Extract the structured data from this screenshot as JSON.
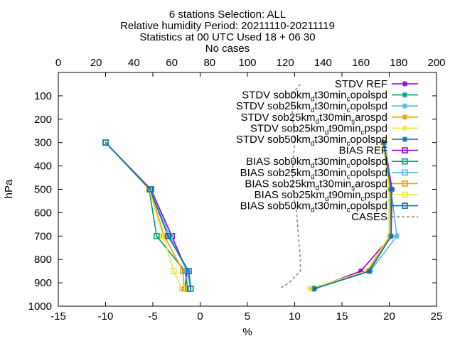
{
  "chart_data": {
    "type": "line",
    "title_lines": [
      "6 stations Selection: ALL",
      "Relative humidity  Period: 20211110-20211119",
      "Statistics at 00 UTC  Used 18 + 06 30",
      "No cases"
    ],
    "xlabel": "%",
    "ylabel": "hPa",
    "xlim": [
      -15,
      25
    ],
    "x2lim": [
      0,
      200
    ],
    "ylim": [
      1000,
      0
    ],
    "x_ticks": [
      "-15",
      "-10",
      "-5",
      "0",
      "5",
      "10",
      "15",
      "20",
      "25"
    ],
    "x2_ticks": [
      "0",
      "20",
      "40",
      "60",
      "80",
      "100",
      "120",
      "140",
      "160",
      "180",
      "200"
    ],
    "y_ticks": [
      "100",
      "200",
      "300",
      "400",
      "500",
      "600",
      "700",
      "800",
      "900",
      "1000"
    ],
    "legend_position": "top-right",
    "grid": false,
    "series": [
      {
        "name": "STDV REF",
        "color": "#9400d3",
        "marker": "star",
        "dash": false,
        "points": [
          [
            19.5,
            300
          ],
          [
            20.3,
            500
          ],
          [
            20.2,
            700
          ],
          [
            17,
            850
          ],
          [
            12,
            925
          ]
        ]
      },
      {
        "name": "STDV sob0km_d t30min_c opolspd",
        "color": "#009e73",
        "marker": "star",
        "dash": false,
        "points": [
          [
            19.4,
            300
          ],
          [
            20.0,
            500
          ],
          [
            20.0,
            700
          ],
          [
            17.8,
            850
          ],
          [
            12,
            925
          ]
        ]
      },
      {
        "name": "STDV sob25km_d t30min_c opolspd",
        "color": "#56b4e9",
        "marker": "star",
        "dash": false,
        "points": [
          [
            19.5,
            300
          ],
          [
            20.2,
            500
          ],
          [
            20.8,
            700
          ],
          [
            18,
            850
          ],
          [
            12.1,
            925
          ]
        ]
      },
      {
        "name": "STDV sob25km_d t30min_s arospd",
        "color": "#e69f00",
        "marker": "star",
        "dash": false,
        "points": [
          [
            19.4,
            300
          ],
          [
            20.1,
            500
          ],
          [
            20.1,
            700
          ],
          [
            17.7,
            850
          ],
          [
            11.9,
            925
          ]
        ]
      },
      {
        "name": "STDV sob25km_d t90min_c pspd",
        "color": "#f0e442",
        "marker": "star",
        "dash": false,
        "points": [
          [
            19.3,
            300
          ],
          [
            20.0,
            500
          ],
          [
            20.0,
            700
          ],
          [
            17.6,
            850
          ],
          [
            11.6,
            925
          ]
        ]
      },
      {
        "name": "STDV sob50km_d t30min_c opolspd",
        "color": "#0072b2",
        "marker": "star",
        "dash": false,
        "points": [
          [
            19.4,
            300
          ],
          [
            20.2,
            500
          ],
          [
            20.2,
            700
          ],
          [
            17.9,
            850
          ],
          [
            12.1,
            925
          ]
        ]
      },
      {
        "name": "BIAS REF",
        "color": "#9400d3",
        "marker": "square",
        "dash": false,
        "points": [
          [
            -10,
            300
          ],
          [
            -5.2,
            500
          ],
          [
            -3,
            700
          ],
          [
            -1.4,
            850
          ],
          [
            -1.6,
            925
          ]
        ]
      },
      {
        "name": "BIAS sob0km_d t30min_c opolspd",
        "color": "#009e73",
        "marker": "square",
        "dash": false,
        "points": [
          [
            -10,
            300
          ],
          [
            -5.4,
            500
          ],
          [
            -4.6,
            700
          ],
          [
            -1.6,
            850
          ],
          [
            -1.3,
            925
          ]
        ]
      },
      {
        "name": "BIAS sob25km_d t30min_c opolspd",
        "color": "#56b4e9",
        "marker": "square",
        "dash": false,
        "points": [
          [
            -10,
            300
          ],
          [
            -5.3,
            500
          ],
          [
            -3.2,
            700
          ],
          [
            -1.4,
            850
          ],
          [
            -1.0,
            925
          ]
        ]
      },
      {
        "name": "BIAS sob25km_d t30min_s arospd",
        "color": "#e69f00",
        "marker": "square",
        "dash": false,
        "points": [
          [
            -10,
            300
          ],
          [
            -5.3,
            500
          ],
          [
            -3.8,
            700
          ],
          [
            -1.8,
            850
          ],
          [
            -1.7,
            925
          ]
        ]
      },
      {
        "name": "BIAS sob25km_d t90min_c pspd",
        "color": "#f0e442",
        "marker": "square",
        "dash": false,
        "points": [
          [
            -10,
            300
          ],
          [
            -5.4,
            500
          ],
          [
            -3.9,
            700
          ],
          [
            -2.8,
            850
          ],
          [
            -1.9,
            925
          ]
        ]
      },
      {
        "name": "BIAS sob50km_d t30min_c opolspd",
        "color": "#0072b2",
        "marker": "square",
        "dash": false,
        "points": [
          [
            -10,
            300
          ],
          [
            -5.3,
            500
          ],
          [
            -3.4,
            700
          ],
          [
            -1.2,
            850
          ],
          [
            -1.0,
            925
          ]
        ]
      },
      {
        "name": "CASES",
        "color": "#888888",
        "marker": "none",
        "dash": true,
        "axis": "x2",
        "points": [
          [
            128,
            50
          ],
          [
            123,
            100
          ],
          [
            124,
            200
          ],
          [
            125,
            300
          ],
          [
            124,
            400
          ],
          [
            124,
            500
          ],
          [
            126,
            600
          ],
          [
            127,
            700
          ],
          [
            128,
            800
          ],
          [
            128,
            850
          ],
          [
            122,
            900
          ],
          [
            117,
            925
          ]
        ]
      }
    ],
    "legend_entries": [
      {
        "parts": [
          [
            "STDV REF",
            ""
          ]
        ]
      },
      {
        "parts": [
          [
            "STDV sob0km",
            ""
          ],
          [
            "d",
            "sub"
          ],
          [
            "t30min",
            ""
          ],
          [
            "c",
            "sub"
          ],
          [
            "opolspd",
            ""
          ]
        ]
      },
      {
        "parts": [
          [
            "STDV sob25km",
            ""
          ],
          [
            "d",
            "sub"
          ],
          [
            "t30min",
            ""
          ],
          [
            "c",
            "sub"
          ],
          [
            "opolspd",
            ""
          ]
        ]
      },
      {
        "parts": [
          [
            "STDV sob25km",
            ""
          ],
          [
            "d",
            "sub"
          ],
          [
            "t30min",
            ""
          ],
          [
            "s",
            "sub"
          ],
          [
            "arospd",
            ""
          ]
        ]
      },
      {
        "parts": [
          [
            "STDV sob25km",
            ""
          ],
          [
            "d",
            "sub"
          ],
          [
            "t90min",
            ""
          ],
          [
            "c",
            "sub"
          ],
          [
            "pspd",
            ""
          ]
        ]
      },
      {
        "parts": [
          [
            "STDV sob50km",
            ""
          ],
          [
            "d",
            "sub"
          ],
          [
            "t30min",
            ""
          ],
          [
            "c",
            "sub"
          ],
          [
            "opolspd",
            ""
          ]
        ]
      },
      {
        "parts": [
          [
            "BIAS REF",
            ""
          ]
        ]
      },
      {
        "parts": [
          [
            "BIAS sob0km",
            ""
          ],
          [
            "d",
            "sub"
          ],
          [
            "t30min",
            ""
          ],
          [
            "c",
            "sub"
          ],
          [
            "opolspd",
            ""
          ]
        ]
      },
      {
        "parts": [
          [
            "BIAS sob25km",
            ""
          ],
          [
            "d",
            "sub"
          ],
          [
            "t30min",
            ""
          ],
          [
            "c",
            "sub"
          ],
          [
            "opolspd",
            ""
          ]
        ]
      },
      {
        "parts": [
          [
            "BIAS sob25km",
            ""
          ],
          [
            "d",
            "sub"
          ],
          [
            "t30min",
            ""
          ],
          [
            "s",
            "sub"
          ],
          [
            "arospd",
            ""
          ]
        ]
      },
      {
        "parts": [
          [
            "BIAS sob25km",
            ""
          ],
          [
            "d",
            "sub"
          ],
          [
            "t90min",
            ""
          ],
          [
            "c",
            "sub"
          ],
          [
            "pspd",
            ""
          ]
        ]
      },
      {
        "parts": [
          [
            "BIAS sob50km",
            ""
          ],
          [
            "d",
            "sub"
          ],
          [
            "t30min",
            ""
          ],
          [
            "c",
            "sub"
          ],
          [
            "opolspd",
            ""
          ]
        ]
      },
      {
        "parts": [
          [
            "CASES",
            ""
          ]
        ]
      }
    ]
  }
}
